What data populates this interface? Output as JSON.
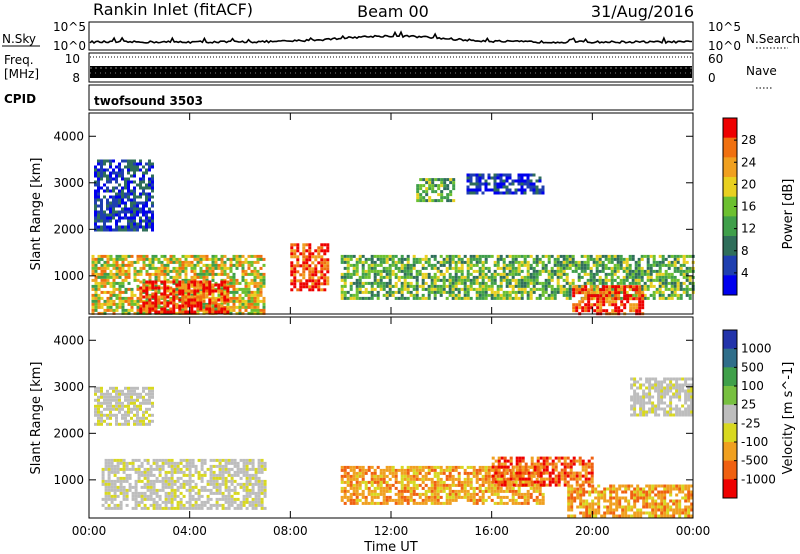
{
  "header": {
    "station": "Rankin Inlet (fitACF)",
    "beam": "Beam 00",
    "date": "31/Aug/2016"
  },
  "summary": {
    "nsky_label": "N.Sky",
    "nsky_ticks": [
      "10^5",
      "10^0"
    ],
    "freq_label_1": "Freq.",
    "freq_label_2": "[MHz]",
    "freq_ticks": [
      "10",
      "8"
    ],
    "cpid_label": "CPID",
    "cpid_value": "twofsound 3503",
    "nsearch_label": "N.Search",
    "nsearch_ticks": [
      "10^5",
      "10^0"
    ],
    "nave_label": "Nave",
    "nave_ticks": [
      "60",
      "0"
    ]
  },
  "colors": {
    "power_scale": [
      "#0000ee",
      "#1f3fb0",
      "#2f6e5a",
      "#3f9f4a",
      "#6cc030",
      "#e8d020",
      "#f0a020",
      "#f07010",
      "#ee0000"
    ],
    "velocity_scale": [
      "#2233aa",
      "#2f6e8a",
      "#3fa04a",
      "#77c040",
      "#bdbdbd",
      "#d8d820",
      "#f0a020",
      "#f06010",
      "#ee0000"
    ]
  },
  "chart_data": [
    {
      "type": "heatmap",
      "title": "Power",
      "xlabel": "",
      "ylabel": "Slant Range [km]",
      "x_ticks": [
        "00:00",
        "04:00",
        "08:00",
        "12:00",
        "16:00",
        "20:00",
        "00:00"
      ],
      "y_ticks": [
        "1000",
        "2000",
        "3000",
        "4000"
      ],
      "xlim_hours": [
        0,
        24
      ],
      "ylim_km": [
        180,
        4500
      ],
      "colorbar": {
        "label": "Power [dB]",
        "ticks": [
          "4",
          "8",
          "12",
          "16",
          "20",
          "24",
          "28"
        ],
        "range": [
          0,
          32
        ]
      },
      "regions": [
        {
          "t": [
            0.1,
            7.0
          ],
          "r": [
            180,
            1450
          ],
          "level": "mid-high"
        },
        {
          "t": [
            2.0,
            5.5
          ],
          "r": [
            200,
            900
          ],
          "level": "high"
        },
        {
          "t": [
            8.0,
            9.5
          ],
          "r": [
            700,
            1700
          ],
          "level": "high"
        },
        {
          "t": [
            10.0,
            24.0
          ],
          "r": [
            500,
            1450
          ],
          "level": "mid"
        },
        {
          "t": [
            19.2,
            22.0
          ],
          "r": [
            200,
            800
          ],
          "level": "high"
        },
        {
          "t": [
            0.2,
            2.5
          ],
          "r": [
            2000,
            3500
          ],
          "level": "low"
        },
        {
          "t": [
            13.0,
            14.5
          ],
          "r": [
            2600,
            3100
          ],
          "level": "mid"
        },
        {
          "t": [
            15.0,
            18.0
          ],
          "r": [
            2800,
            3200
          ],
          "level": "low"
        }
      ]
    },
    {
      "type": "heatmap",
      "title": "Velocity",
      "xlabel": "Time UT",
      "ylabel": "Slant Range [km]",
      "x_ticks": [
        "00:00",
        "04:00",
        "08:00",
        "12:00",
        "16:00",
        "20:00",
        "00:00"
      ],
      "y_ticks": [
        "1000",
        "2000",
        "3000",
        "4000"
      ],
      "xlim_hours": [
        0,
        24
      ],
      "ylim_km": [
        180,
        4500
      ],
      "colorbar": {
        "label": "Velocity [m s^-1]",
        "ticks": [
          "1000",
          "500",
          "100",
          "25",
          "-25",
          "-100",
          "-500",
          "-1000"
        ],
        "range": [
          -1000,
          1000
        ]
      },
      "regions": [
        {
          "t": [
            0.5,
            7.0
          ],
          "r": [
            400,
            1450
          ],
          "level": "zero"
        },
        {
          "t": [
            10.0,
            18.0
          ],
          "r": [
            500,
            1300
          ],
          "level": "negative"
        },
        {
          "t": [
            16.0,
            20.0
          ],
          "r": [
            900,
            1500
          ],
          "level": "strong-negative"
        },
        {
          "t": [
            19.0,
            24.0
          ],
          "r": [
            200,
            900
          ],
          "level": "negative"
        },
        {
          "t": [
            0.2,
            2.5
          ],
          "r": [
            2200,
            3000
          ],
          "level": "zero"
        },
        {
          "t": [
            21.5,
            24.0
          ],
          "r": [
            2400,
            3200
          ],
          "level": "zero"
        }
      ]
    }
  ]
}
